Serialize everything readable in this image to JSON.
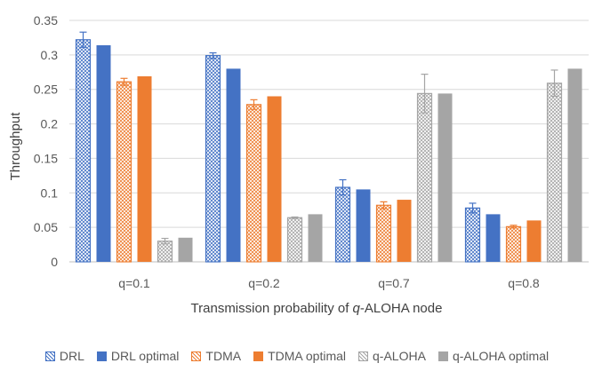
{
  "chart_data": {
    "type": "bar",
    "title": "",
    "xlabel": "Transmission probability of q-ALOHA node",
    "xlabel_parts": [
      "Transmission probability of ",
      "q",
      "-ALOHA node"
    ],
    "ylabel": "Throughput",
    "ylim": [
      0,
      0.35
    ],
    "yticks": [
      0,
      0.05,
      0.1,
      0.15,
      0.2,
      0.25,
      0.3,
      0.35
    ],
    "ytick_labels": [
      "0",
      "0.05",
      "0.1",
      "0.15",
      "0.2",
      "0.25",
      "0.3",
      "0.35"
    ],
    "grid": "horizontal",
    "legend_position": "bottom",
    "categories": [
      "q=0.1",
      "q=0.2",
      "q=0.7",
      "q=0.8"
    ],
    "series": [
      {
        "name": "DRL",
        "values": [
          0.322,
          0.299,
          0.108,
          0.078
        ],
        "error": [
          0.011,
          0.004,
          0.011,
          0.007
        ],
        "color": "#4472C4",
        "pattern": true
      },
      {
        "name": "DRL optimal",
        "values": [
          0.314,
          0.28,
          0.105,
          0.069
        ],
        "color": "#4472C4",
        "pattern": false
      },
      {
        "name": "TDMA",
        "values": [
          0.261,
          0.228,
          0.082,
          0.051
        ],
        "error": [
          0.005,
          0.007,
          0.005,
          0.002
        ],
        "color": "#ED7D31",
        "pattern": true
      },
      {
        "name": "TDMA optimal",
        "values": [
          0.269,
          0.24,
          0.09,
          0.06
        ],
        "color": "#ED7D31",
        "pattern": false
      },
      {
        "name": "q-ALOHA",
        "values": [
          0.03,
          0.064,
          0.244,
          0.259
        ],
        "error": [
          0.004,
          0.001,
          0.028,
          0.019
        ],
        "color": "#A5A5A5",
        "pattern": true
      },
      {
        "name": "q-ALOHA optimal",
        "values": [
          0.035,
          0.069,
          0.244,
          0.28
        ],
        "color": "#A5A5A5",
        "pattern": false
      }
    ]
  }
}
